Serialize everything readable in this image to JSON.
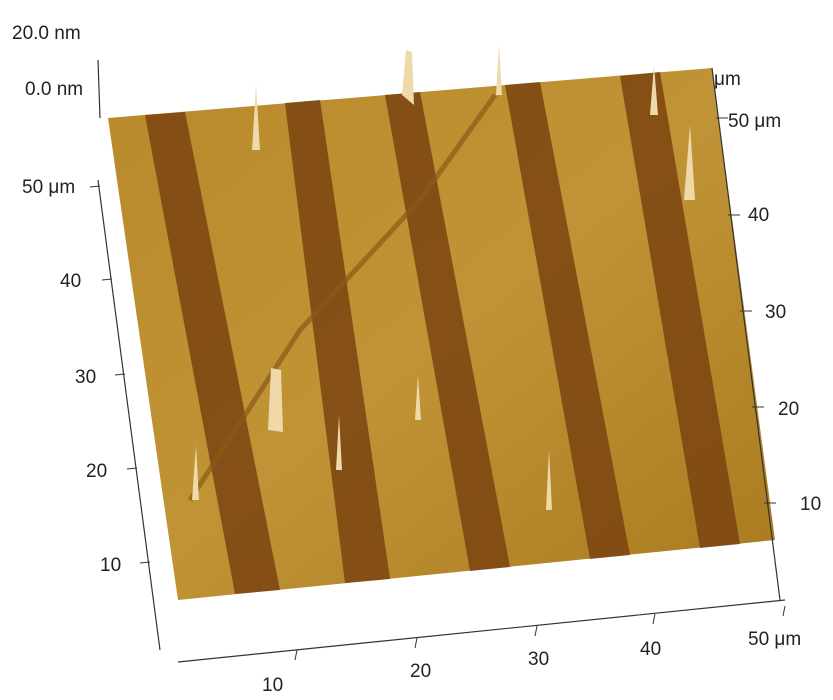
{
  "z_axis": {
    "max_label": "20.0 nm",
    "min_label": "0.0 nm"
  },
  "left_axis": {
    "labels": [
      "50 μm",
      "40",
      "30",
      "20",
      "10"
    ]
  },
  "right_axis": {
    "unit": "μm",
    "labels": [
      "50 μm",
      "40",
      "30",
      "20",
      "10"
    ]
  },
  "bottom_axis": {
    "labels": [
      "10",
      "20",
      "30",
      "40",
      "50 μm"
    ]
  }
}
